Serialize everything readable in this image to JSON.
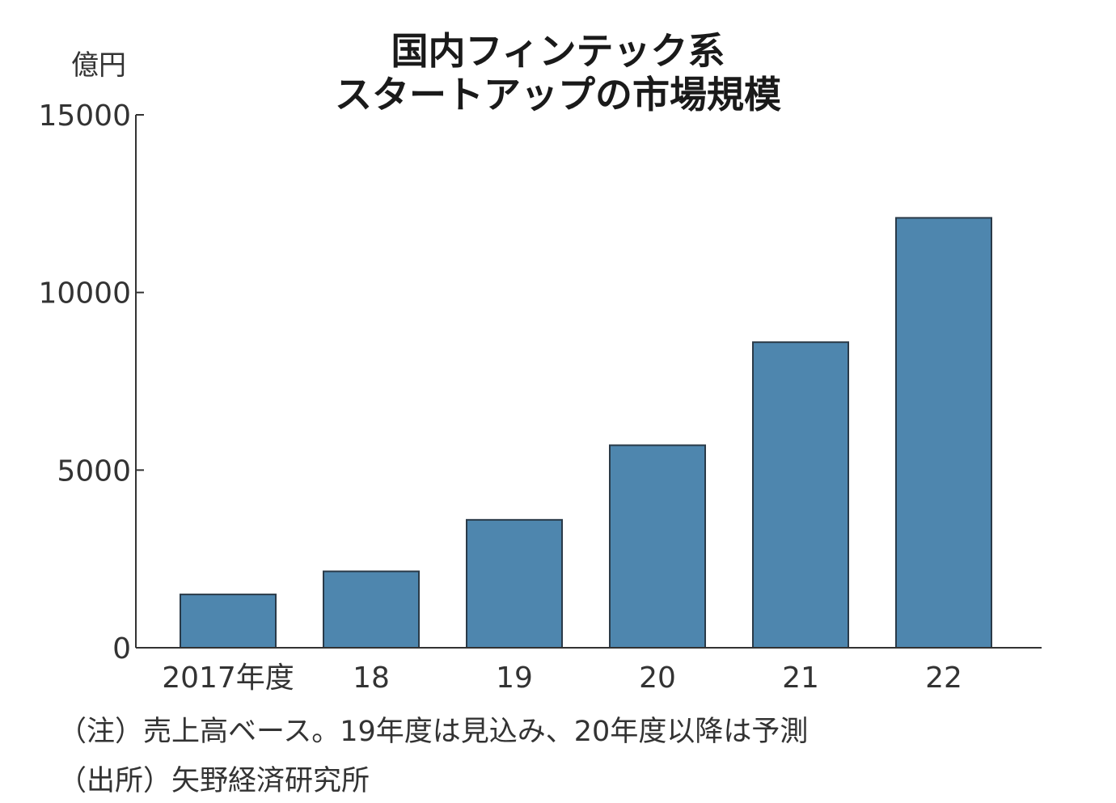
{
  "chart_data": {
    "type": "bar",
    "title_lines": [
      "国内フィンテック系",
      "スタートアップの市場規模"
    ],
    "unit_label": "億円",
    "categories": [
      "2017年度",
      "18",
      "19",
      "20",
      "21",
      "22"
    ],
    "values": [
      1500,
      2150,
      3600,
      5700,
      8600,
      12100
    ],
    "ylim": [
      0,
      15000
    ],
    "y_ticks": [
      0,
      5000,
      10000,
      15000
    ],
    "y_tick_labels": [
      "0",
      "5000",
      "10000",
      "15000"
    ],
    "grid": false,
    "bar_color": "#4e86ae",
    "bar_edge_color": "#2a3a48"
  },
  "footnotes": {
    "note": "（注）売上高ベース。19年度は見込み、20年度以降は予測",
    "source": "（出所）矢野経済研究所"
  }
}
